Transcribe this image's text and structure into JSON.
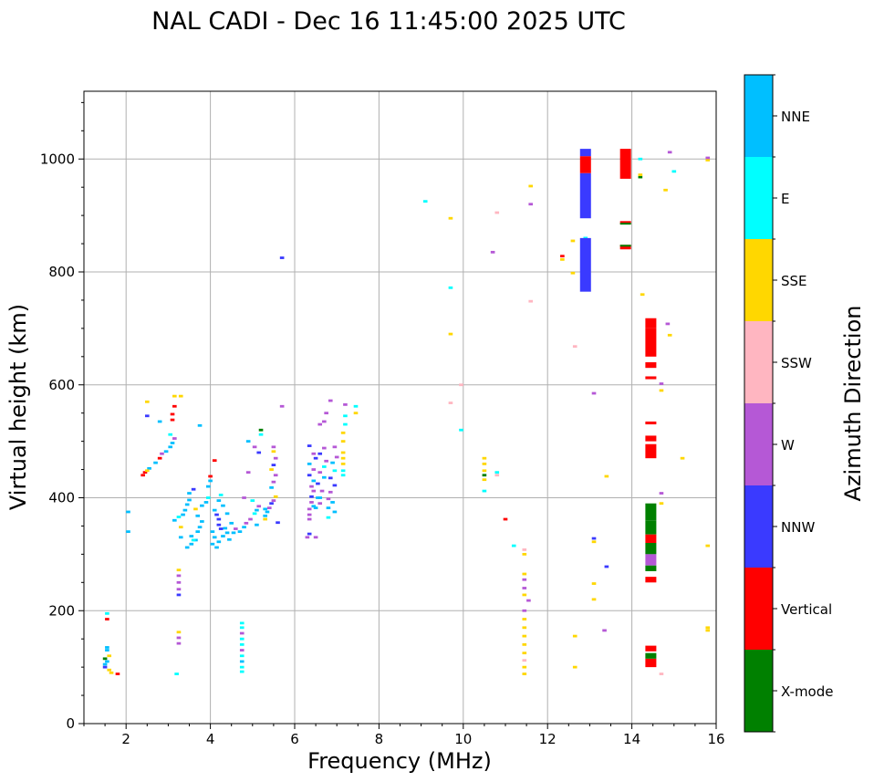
{
  "chart_data": {
    "type": "scatter",
    "title": "NAL CADI - Dec 16 11:45:00 2025 UTC",
    "xlabel": "Frequency (MHz)",
    "ylabel": "Virtual height (km)",
    "xlim": [
      1,
      16
    ],
    "ylim": [
      0,
      1120
    ],
    "xticks": [
      2,
      4,
      6,
      8,
      10,
      12,
      14,
      16
    ],
    "yticks": [
      0,
      200,
      400,
      600,
      800,
      1000
    ],
    "grid": true,
    "colorbar": {
      "label": "Azimuth Direction",
      "categories": [
        {
          "name": "X-mode",
          "color": "#008000"
        },
        {
          "name": "Vertical",
          "color": "#ff0000"
        },
        {
          "name": "NNW",
          "color": "#3a3aff"
        },
        {
          "name": "W",
          "color": "#b558d6"
        },
        {
          "name": "SSW",
          "color": "#ffb6c1"
        },
        {
          "name": "SSE",
          "color": "#ffd700"
        },
        {
          "name": "E",
          "color": "#00ffff"
        },
        {
          "name": "NNE",
          "color": "#00bfff"
        }
      ]
    },
    "points_legend": "[frequency MHz, virtual height km, direction index 0-7]",
    "points": [
      [
        1.5,
        100,
        2
      ],
      [
        1.5,
        105,
        7
      ],
      [
        1.55,
        110,
        7
      ],
      [
        1.5,
        115,
        0
      ],
      [
        1.6,
        120,
        5
      ],
      [
        1.55,
        130,
        7
      ],
      [
        1.55,
        135,
        7
      ],
      [
        1.6,
        95,
        5
      ],
      [
        1.65,
        90,
        5
      ],
      [
        1.55,
        185,
        1
      ],
      [
        1.55,
        195,
        6
      ],
      [
        1.8,
        88,
        1
      ],
      [
        2.4,
        440,
        1
      ],
      [
        2.45,
        445,
        1
      ],
      [
        2.55,
        452,
        7
      ],
      [
        2.5,
        448,
        5
      ],
      [
        2.7,
        462,
        7
      ],
      [
        2.8,
        470,
        1
      ],
      [
        2.85,
        478,
        3
      ],
      [
        2.95,
        482,
        7
      ],
      [
        3.05,
        490,
        7
      ],
      [
        3.1,
        497,
        7
      ],
      [
        3.15,
        505,
        3
      ],
      [
        2.5,
        545,
        2
      ],
      [
        2.5,
        570,
        5
      ],
      [
        2.8,
        535,
        7
      ],
      [
        3.1,
        538,
        1
      ],
      [
        3.1,
        548,
        1
      ],
      [
        3.15,
        562,
        1
      ],
      [
        3.15,
        580,
        5
      ],
      [
        3.05,
        512,
        6
      ],
      [
        2.05,
        375,
        7
      ],
      [
        2.05,
        340,
        7
      ],
      [
        3.15,
        360,
        7
      ],
      [
        3.25,
        366,
        6
      ],
      [
        3.35,
        370,
        7
      ],
      [
        3.4,
        378,
        7
      ],
      [
        3.45,
        388,
        7
      ],
      [
        3.5,
        396,
        7
      ],
      [
        3.3,
        348,
        5
      ],
      [
        3.3,
        330,
        7
      ],
      [
        3.55,
        332,
        7
      ],
      [
        3.45,
        312,
        7
      ],
      [
        3.55,
        318,
        7
      ],
      [
        3.65,
        325,
        7
      ],
      [
        3.7,
        340,
        7
      ],
      [
        3.75,
        348,
        7
      ],
      [
        3.8,
        358,
        7
      ],
      [
        3.7,
        368,
        7
      ],
      [
        3.65,
        380,
        5
      ],
      [
        3.8,
        386,
        7
      ],
      [
        3.9,
        392,
        7
      ],
      [
        3.95,
        400,
        6
      ],
      [
        3.5,
        408,
        7
      ],
      [
        3.6,
        415,
        2
      ],
      [
        3.95,
        420,
        7
      ],
      [
        4.0,
        430,
        7
      ],
      [
        4.0,
        438,
        1
      ],
      [
        4.1,
        466,
        1
      ],
      [
        4.1,
        378,
        7
      ],
      [
        4.15,
        370,
        2
      ],
      [
        4.2,
        362,
        2
      ],
      [
        4.2,
        352,
        2
      ],
      [
        4.25,
        345,
        2
      ],
      [
        4.05,
        340,
        7
      ],
      [
        4.1,
        330,
        7
      ],
      [
        4.2,
        322,
        7
      ],
      [
        4.15,
        312,
        7
      ],
      [
        4.3,
        332,
        7
      ],
      [
        4.4,
        338,
        7
      ],
      [
        4.45,
        326,
        7
      ],
      [
        4.35,
        346,
        7
      ],
      [
        4.5,
        355,
        7
      ],
      [
        4.55,
        338,
        7
      ],
      [
        4.6,
        345,
        3
      ],
      [
        4.05,
        318,
        7
      ],
      [
        4.2,
        395,
        7
      ],
      [
        4.3,
        386,
        7
      ],
      [
        4.4,
        372,
        7
      ],
      [
        4.25,
        405,
        6
      ],
      [
        3.6,
        325,
        6
      ],
      [
        3.3,
        580,
        5
      ],
      [
        3.75,
        528,
        7
      ],
      [
        3.25,
        228,
        2
      ],
      [
        3.25,
        238,
        3
      ],
      [
        3.25,
        250,
        3
      ],
      [
        3.25,
        262,
        3
      ],
      [
        3.25,
        272,
        5
      ],
      [
        3.25,
        142,
        3
      ],
      [
        3.25,
        152,
        3
      ],
      [
        3.25,
        162,
        5
      ],
      [
        3.2,
        88,
        6
      ],
      [
        4.75,
        92,
        6
      ],
      [
        4.75,
        100,
        6
      ],
      [
        4.75,
        110,
        7
      ],
      [
        4.75,
        120,
        6
      ],
      [
        4.75,
        130,
        3
      ],
      [
        4.75,
        140,
        6
      ],
      [
        4.75,
        150,
        6
      ],
      [
        4.75,
        160,
        3
      ],
      [
        4.75,
        170,
        6
      ],
      [
        4.75,
        178,
        6
      ],
      [
        4.7,
        340,
        7
      ],
      [
        4.8,
        348,
        7
      ],
      [
        4.85,
        355,
        3
      ],
      [
        4.95,
        362,
        3
      ],
      [
        5.05,
        372,
        6
      ],
      [
        5.1,
        378,
        7
      ],
      [
        5.0,
        395,
        6
      ],
      [
        5.15,
        385,
        3
      ],
      [
        5.1,
        352,
        7
      ],
      [
        5.3,
        368,
        7
      ],
      [
        5.35,
        375,
        7
      ],
      [
        5.4,
        382,
        3
      ],
      [
        5.45,
        390,
        2
      ],
      [
        5.5,
        395,
        3
      ],
      [
        5.55,
        402,
        5
      ],
      [
        5.45,
        418,
        7
      ],
      [
        5.5,
        428,
        3
      ],
      [
        5.55,
        440,
        3
      ],
      [
        5.45,
        450,
        5
      ],
      [
        5.5,
        458,
        2
      ],
      [
        5.55,
        470,
        3
      ],
      [
        5.5,
        482,
        5
      ],
      [
        5.5,
        490,
        3
      ],
      [
        5.2,
        520,
        0
      ],
      [
        5.2,
        512,
        6
      ],
      [
        5.05,
        490,
        3
      ],
      [
        4.9,
        445,
        3
      ],
      [
        4.8,
        400,
        3
      ],
      [
        4.9,
        500,
        7
      ],
      [
        5.15,
        480,
        2
      ],
      [
        5.3,
        362,
        5
      ],
      [
        5.6,
        356,
        2
      ],
      [
        5.7,
        562,
        3
      ],
      [
        5.7,
        825,
        2
      ],
      [
        5.3,
        380,
        7
      ],
      [
        6.3,
        330,
        3
      ],
      [
        6.35,
        336,
        2
      ],
      [
        6.35,
        362,
        3
      ],
      [
        6.35,
        370,
        3
      ],
      [
        6.35,
        380,
        3
      ],
      [
        6.4,
        392,
        3
      ],
      [
        6.4,
        402,
        2
      ],
      [
        6.45,
        412,
        3
      ],
      [
        6.4,
        420,
        3
      ],
      [
        6.45,
        430,
        7
      ],
      [
        6.35,
        440,
        2
      ],
      [
        6.45,
        450,
        3
      ],
      [
        6.35,
        460,
        7
      ],
      [
        6.5,
        470,
        2
      ],
      [
        6.45,
        478,
        3
      ],
      [
        6.35,
        492,
        2
      ],
      [
        6.5,
        382,
        7
      ],
      [
        6.6,
        390,
        3
      ],
      [
        6.55,
        400,
        7
      ],
      [
        6.65,
        412,
        3
      ],
      [
        6.55,
        425,
        2
      ],
      [
        6.7,
        436,
        7
      ],
      [
        6.6,
        445,
        3
      ],
      [
        6.7,
        455,
        6
      ],
      [
        6.75,
        465,
        3
      ],
      [
        6.6,
        478,
        2
      ],
      [
        6.7,
        488,
        3
      ],
      [
        6.8,
        398,
        3
      ],
      [
        6.8,
        382,
        7
      ],
      [
        6.9,
        392,
        7
      ],
      [
        6.95,
        375,
        7
      ],
      [
        6.85,
        410,
        3
      ],
      [
        6.95,
        422,
        2
      ],
      [
        6.85,
        435,
        2
      ],
      [
        6.95,
        448,
        6
      ],
      [
        6.9,
        462,
        7
      ],
      [
        7.0,
        472,
        3
      ],
      [
        6.95,
        490,
        3
      ],
      [
        6.8,
        365,
        6
      ],
      [
        6.6,
        530,
        3
      ],
      [
        6.7,
        535,
        3
      ],
      [
        6.75,
        550,
        3
      ],
      [
        6.85,
        572,
        3
      ],
      [
        6.5,
        330,
        3
      ],
      [
        7.15,
        440,
        6
      ],
      [
        7.15,
        448,
        6
      ],
      [
        7.15,
        460,
        5
      ],
      [
        7.15,
        470,
        5
      ],
      [
        7.15,
        480,
        5
      ],
      [
        7.15,
        500,
        5
      ],
      [
        7.15,
        515,
        5
      ],
      [
        7.2,
        530,
        6
      ],
      [
        7.2,
        545,
        6
      ],
      [
        7.2,
        565,
        3
      ],
      [
        7.45,
        550,
        5
      ],
      [
        7.45,
        562,
        6
      ],
      [
        6.45,
        385,
        7
      ],
      [
        6.6,
        400,
        7
      ],
      [
        9.1,
        925,
        6
      ],
      [
        9.7,
        895,
        5
      ],
      [
        9.7,
        772,
        6
      ],
      [
        9.7,
        690,
        5
      ],
      [
        9.7,
        568,
        4
      ],
      [
        9.95,
        600,
        4
      ],
      [
        9.95,
        520,
        6
      ],
      [
        10.5,
        412,
        6
      ],
      [
        10.5,
        432,
        5
      ],
      [
        10.5,
        440,
        0
      ],
      [
        10.5,
        448,
        5
      ],
      [
        10.5,
        460,
        5
      ],
      [
        10.5,
        470,
        5
      ],
      [
        10.8,
        440,
        4
      ],
      [
        10.8,
        445,
        6
      ],
      [
        10.7,
        835,
        3
      ],
      [
        10.8,
        905,
        4
      ],
      [
        11.0,
        362,
        1
      ],
      [
        11.2,
        315,
        6
      ],
      [
        11.45,
        88,
        5
      ],
      [
        11.45,
        100,
        5
      ],
      [
        11.45,
        112,
        4
      ],
      [
        11.45,
        125,
        5
      ],
      [
        11.45,
        140,
        5
      ],
      [
        11.45,
        155,
        5
      ],
      [
        11.45,
        170,
        5
      ],
      [
        11.45,
        185,
        5
      ],
      [
        11.45,
        200,
        3
      ],
      [
        11.45,
        228,
        5
      ],
      [
        11.45,
        240,
        3
      ],
      [
        11.45,
        255,
        3
      ],
      [
        11.45,
        265,
        5
      ],
      [
        11.45,
        300,
        5
      ],
      [
        11.45,
        308,
        4
      ],
      [
        11.55,
        218,
        3
      ],
      [
        11.6,
        748,
        4
      ],
      [
        11.6,
        920,
        3
      ],
      [
        11.6,
        952,
        5
      ],
      [
        12.35,
        828,
        1
      ],
      [
        12.35,
        822,
        5
      ],
      [
        12.6,
        798,
        5
      ],
      [
        12.6,
        855,
        5
      ],
      [
        12.65,
        668,
        4
      ],
      [
        12.65,
        155,
        5
      ],
      [
        12.65,
        100,
        5
      ],
      [
        13.1,
        220,
        5
      ],
      [
        13.1,
        248,
        5
      ],
      [
        13.1,
        322,
        5
      ],
      [
        13.1,
        328,
        2
      ],
      [
        13.1,
        585,
        3
      ],
      [
        13.35,
        165,
        3
      ],
      [
        13.4,
        278,
        2
      ],
      [
        13.4,
        438,
        5
      ],
      [
        12.9,
        820,
        1
      ],
      [
        12.9,
        850,
        2
      ],
      [
        12.9,
        860,
        6
      ],
      [
        14.25,
        760,
        5
      ],
      [
        14.2,
        968,
        0
      ],
      [
        14.2,
        972,
        5
      ],
      [
        14.2,
        1000,
        6
      ],
      [
        14.8,
        945,
        5
      ],
      [
        14.9,
        1012,
        3
      ],
      [
        15.0,
        978,
        6
      ],
      [
        14.85,
        708,
        3
      ],
      [
        14.9,
        688,
        5
      ],
      [
        14.7,
        602,
        3
      ],
      [
        14.7,
        590,
        5
      ],
      [
        14.7,
        408,
        3
      ],
      [
        14.7,
        390,
        5
      ],
      [
        14.7,
        88,
        4
      ],
      [
        15.2,
        470,
        5
      ],
      [
        15.8,
        315,
        5
      ],
      [
        15.8,
        165,
        5
      ],
      [
        15.8,
        170,
        5
      ],
      [
        15.8,
        998,
        5
      ],
      [
        15.8,
        1002,
        3
      ]
    ],
    "bars_legend": "[frequency MHz, height from km, height to km, direction index 0-7]",
    "bars": [
      [
        12.9,
        765,
        860,
        2
      ],
      [
        12.9,
        895,
        975,
        2
      ],
      [
        12.9,
        975,
        1005,
        1
      ],
      [
        12.9,
        1005,
        1018,
        2
      ],
      [
        13.85,
        965,
        1018,
        1
      ],
      [
        13.85,
        885,
        890,
        1
      ],
      [
        13.85,
        885,
        887,
        0
      ],
      [
        13.85,
        840,
        848,
        1
      ],
      [
        13.85,
        845,
        848,
        0
      ],
      [
        14.45,
        650,
        700,
        1
      ],
      [
        14.45,
        700,
        718,
        1
      ],
      [
        14.45,
        630,
        640,
        1
      ],
      [
        14.45,
        610,
        615,
        1
      ],
      [
        14.45,
        470,
        480,
        1
      ],
      [
        14.45,
        480,
        495,
        1
      ],
      [
        14.45,
        500,
        510,
        1
      ],
      [
        14.45,
        530,
        535,
        1
      ],
      [
        14.45,
        360,
        390,
        0
      ],
      [
        14.45,
        335,
        360,
        0
      ],
      [
        14.45,
        320,
        335,
        1
      ],
      [
        14.45,
        300,
        320,
        0
      ],
      [
        14.45,
        280,
        300,
        3
      ],
      [
        14.45,
        270,
        280,
        0
      ],
      [
        14.45,
        250,
        260,
        1
      ],
      [
        14.45,
        100,
        115,
        1
      ],
      [
        14.45,
        115,
        125,
        0
      ],
      [
        14.45,
        128,
        138,
        1
      ]
    ]
  }
}
